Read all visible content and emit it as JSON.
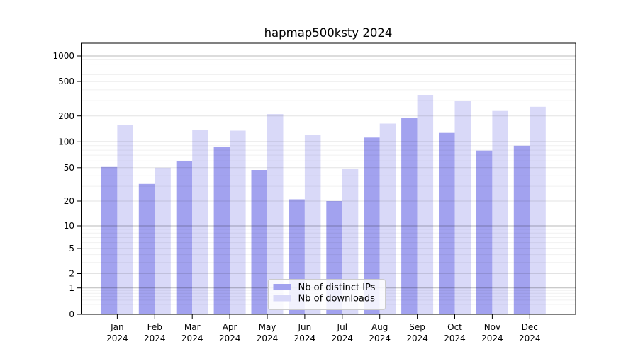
{
  "title": "hapmap500ksty 2024",
  "colors": {
    "bar_distinct_ips": "#a2a2ef",
    "bar_downloads": "#d9d9f8",
    "axis": "#000000",
    "grid_major": "rgba(0,0,0,0.28)",
    "grid_mid": "rgba(0,0,0,0.11)",
    "grid_minor": "rgba(0,0,0,0.055)",
    "legend_border": "#cccccc",
    "legend_bg": "rgba(255,255,255,0.85)"
  },
  "legend": {
    "items": [
      {
        "label": "Nb of distinct IPs",
        "color_key": "bar_distinct_ips"
      },
      {
        "label": "Nb of downloads",
        "color_key": "bar_downloads"
      }
    ]
  },
  "y_axis": {
    "tick_labels": [
      "0",
      "1",
      "2",
      "5",
      "10",
      "20",
      "50",
      "100",
      "200",
      "500",
      "1000"
    ]
  },
  "x_axis": {
    "months": [
      "Jan",
      "Feb",
      "Mar",
      "Apr",
      "May",
      "Jun",
      "Jul",
      "Aug",
      "Sep",
      "Oct",
      "Nov",
      "Dec"
    ],
    "year": "2024"
  },
  "chart_data": {
    "type": "bar",
    "title": "hapmap500ksty 2024",
    "categories": [
      "Jan 2024",
      "Feb 2024",
      "Mar 2024",
      "Apr 2024",
      "May 2024",
      "Jun 2024",
      "Jul 2024",
      "Aug 2024",
      "Sep 2024",
      "Oct 2024",
      "Nov 2024",
      "Dec 2024"
    ],
    "series": [
      {
        "name": "Nb of distinct IPs",
        "values": [
          51,
          32,
          60,
          88,
          47,
          21,
          20,
          112,
          190,
          127,
          79,
          90
        ]
      },
      {
        "name": "Nb of downloads",
        "values": [
          158,
          50,
          137,
          135,
          210,
          120,
          48,
          163,
          350,
          300,
          228,
          255
        ]
      }
    ],
    "xlabel": "",
    "ylabel": "",
    "yscale": "symlog-like",
    "yticks": [
      0,
      1,
      2,
      5,
      10,
      20,
      50,
      100,
      200,
      500,
      1000
    ],
    "ylim": [
      0,
      1400
    ],
    "grid": "both-horizontal",
    "legend_position": "lower-center-inside"
  }
}
